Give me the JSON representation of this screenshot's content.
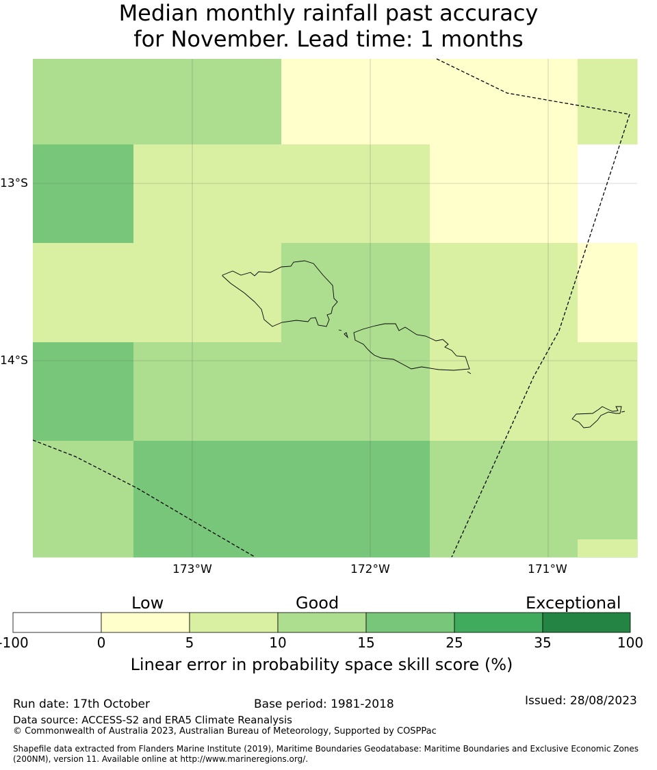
{
  "title": {
    "line1": "Median monthly rainfall past accuracy",
    "line2": "for November. Lead time: 1 months"
  },
  "map": {
    "lat_ticks": [
      "13°S",
      "14°S"
    ],
    "lon_ticks": [
      "173°W",
      "172°W",
      "171°W"
    ],
    "grid_colors": [
      [
        "#addd8e",
        "#addd8e",
        "#addd8e",
        "#ffffcc",
        "#ffffcc",
        "#ffffcc",
        "#d9f0a3"
      ],
      [
        "#78c679",
        "#d9f0a3",
        "#d9f0a3",
        "#d9f0a3",
        "#ffffcc",
        "#ffffcc",
        "#ffffff"
      ],
      [
        "#d9f0a3",
        "#d9f0a3",
        "#d9f0a3",
        "#addd8e",
        "#d9f0a3",
        "#d9f0a3",
        "#ffffcc"
      ],
      [
        "#78c679",
        "#addd8e",
        "#addd8e",
        "#addd8e",
        "#d9f0a3",
        "#d9f0a3",
        "#d9f0a3"
      ],
      [
        "#addd8e",
        "#78c679",
        "#78c679",
        "#78c679",
        "#addd8e",
        "#addd8e",
        "#addd8e"
      ]
    ]
  },
  "legend": {
    "categories": [
      "Low",
      "Good",
      "Exceptional"
    ],
    "ticks": [
      "-100",
      "0",
      "5",
      "10",
      "15",
      "25",
      "35",
      "100"
    ],
    "colors": [
      "#ffffff",
      "#ffffcc",
      "#d9f0a3",
      "#addd8e",
      "#78c679",
      "#41ab5d",
      "#238443"
    ],
    "label": "Linear error in probability space skill score (%)"
  },
  "footer": {
    "run_date": "Run date: 17th October",
    "base_period": "Base period: 1981-2018",
    "issued": "Issued: 28/08/2023",
    "data_source": "Data source: ACCESS-S2 and ERA5 Climate Reanalysis",
    "copyright": "© Commonwealth of Australia 2023, Australian Bureau of Meteorology, Supported by COSPPac",
    "shapefile_line1": "Shapefile data extracted from Flanders Marine Institute (2019), Maritime Boundaries Geodatabase: Maritime Boundaries and Exclusive Economic Zones",
    "shapefile_line2": "(200NM), version 11. Available online at http://www.marineregions.org/."
  }
}
